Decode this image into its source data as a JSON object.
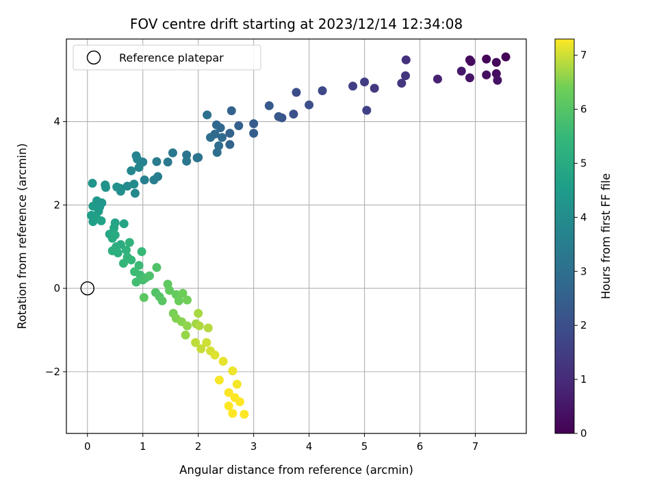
{
  "chart_data": {
    "type": "scatter",
    "title": "FOV centre drift starting at 2023/12/14 12:34:08",
    "xlabel": "Angular distance from reference (arcmin)",
    "ylabel": "Rotation from reference (arcmin)",
    "xlim": [
      -0.38,
      7.92
    ],
    "ylim": [
      -3.48,
      5.98
    ],
    "xticks": [
      0,
      1,
      2,
      3,
      4,
      5,
      6,
      7
    ],
    "yticks": [
      -2,
      0,
      2,
      4
    ],
    "xtick_labels": [
      "0",
      "1",
      "2",
      "3",
      "4",
      "5",
      "6",
      "7"
    ],
    "ytick_labels": [
      "−2",
      "0",
      "2",
      "4"
    ],
    "grid": true,
    "legend": {
      "entries": [
        "Reference platepar"
      ],
      "placement": "top-left"
    },
    "colormap": "viridis",
    "colorbar": {
      "label": "Hours from first FF file",
      "range": [
        0,
        7.3
      ],
      "ticks": [
        0,
        1,
        2,
        3,
        4,
        5,
        6,
        7
      ],
      "tick_labels": [
        "0",
        "1",
        "2",
        "3",
        "4",
        "5",
        "6",
        "7"
      ]
    },
    "reference_point": {
      "name": "Reference platepar",
      "x": 0,
      "y": 0
    },
    "series": [
      {
        "points": [
          [
            7.55,
            5.55,
            0.05
          ],
          [
            7.2,
            5.5,
            0.1
          ],
          [
            7.38,
            5.42,
            0.15
          ],
          [
            6.9,
            5.48,
            0.2
          ],
          [
            6.92,
            5.44,
            0.25
          ],
          [
            7.38,
            5.15,
            0.3
          ],
          [
            7.2,
            5.12,
            0.35
          ],
          [
            7.4,
            4.99,
            0.4
          ],
          [
            6.9,
            5.05,
            0.45
          ],
          [
            6.75,
            5.21,
            0.55
          ],
          [
            6.32,
            5.02,
            0.75
          ],
          [
            5.75,
            5.48,
            1.2
          ],
          [
            5.74,
            5.1,
            1.25
          ],
          [
            5.67,
            4.92,
            1.3
          ],
          [
            5.18,
            4.8,
            1.4
          ],
          [
            5.0,
            4.95,
            1.5
          ],
          [
            4.79,
            4.85,
            1.55
          ],
          [
            5.04,
            4.27,
            1.6
          ],
          [
            4.24,
            4.74,
            1.8
          ],
          [
            3.77,
            4.7,
            1.9
          ],
          [
            4.0,
            4.4,
            2.0
          ],
          [
            3.72,
            4.18,
            2.1
          ],
          [
            3.51,
            4.09,
            2.2
          ],
          [
            3.45,
            4.12,
            2.25
          ],
          [
            3.28,
            4.38,
            2.3
          ],
          [
            3.0,
            3.95,
            2.4
          ],
          [
            3.0,
            3.72,
            2.45
          ],
          [
            2.73,
            3.9,
            2.5
          ],
          [
            2.6,
            4.26,
            2.55
          ],
          [
            2.57,
            3.72,
            2.6
          ],
          [
            2.57,
            3.45,
            2.65
          ],
          [
            2.4,
            3.85,
            2.7
          ],
          [
            2.33,
            3.92,
            2.75
          ],
          [
            2.43,
            3.62,
            2.8
          ],
          [
            2.3,
            3.7,
            2.85
          ],
          [
            2.22,
            3.62,
            2.9
          ],
          [
            2.37,
            3.42,
            2.95
          ],
          [
            2.34,
            3.26,
            3.0
          ],
          [
            2.16,
            4.16,
            3.05
          ],
          [
            2.0,
            3.14,
            3.1
          ],
          [
            1.98,
            3.13,
            3.15
          ],
          [
            1.79,
            3.2,
            3.2
          ],
          [
            1.79,
            3.05,
            3.25
          ],
          [
            1.54,
            3.25,
            3.3
          ],
          [
            1.45,
            3.03,
            3.35
          ],
          [
            1.25,
            3.04,
            3.4
          ],
          [
            1.27,
            2.68,
            3.45
          ],
          [
            1.2,
            2.6,
            3.5
          ],
          [
            1.03,
            2.6,
            3.55
          ],
          [
            1.0,
            3.03,
            3.6
          ],
          [
            0.88,
            3.18,
            3.65
          ],
          [
            0.9,
            3.1,
            3.7
          ],
          [
            0.93,
            2.9,
            3.75
          ],
          [
            0.79,
            2.82,
            3.8
          ],
          [
            0.86,
            2.28,
            3.85
          ],
          [
            0.72,
            2.45,
            3.9
          ],
          [
            0.84,
            2.5,
            3.95
          ],
          [
            0.59,
            2.4,
            4.0
          ],
          [
            0.6,
            2.33,
            4.05
          ],
          [
            0.53,
            2.43,
            4.1
          ],
          [
            0.32,
            2.48,
            4.15
          ],
          [
            0.33,
            2.42,
            4.2
          ],
          [
            0.09,
            2.52,
            4.25
          ],
          [
            0.26,
            2.05,
            4.3
          ],
          [
            0.17,
            2.1,
            4.35
          ],
          [
            0.22,
            1.95,
            4.4
          ],
          [
            0.1,
            1.97,
            4.45
          ],
          [
            0.2,
            1.85,
            4.5
          ],
          [
            0.07,
            1.75,
            4.55
          ],
          [
            0.1,
            1.6,
            4.6
          ],
          [
            0.16,
            1.7,
            4.65
          ],
          [
            0.25,
            1.62,
            4.7
          ],
          [
            0.5,
            1.57,
            4.75
          ],
          [
            0.66,
            1.55,
            4.8
          ],
          [
            0.48,
            1.45,
            4.85
          ],
          [
            0.4,
            1.3,
            4.9
          ],
          [
            0.45,
            1.2,
            4.95
          ],
          [
            0.5,
            1.28,
            5.0
          ],
          [
            0.6,
            1.05,
            5.05
          ],
          [
            0.52,
            1.0,
            5.1
          ],
          [
            0.45,
            0.9,
            5.15
          ],
          [
            0.55,
            0.85,
            5.2
          ],
          [
            0.7,
            0.92,
            5.25
          ],
          [
            0.76,
            1.1,
            5.3
          ],
          [
            0.72,
            0.75,
            5.35
          ],
          [
            0.65,
            0.6,
            5.4
          ],
          [
            0.79,
            0.68,
            5.45
          ],
          [
            0.98,
            0.88,
            5.5
          ],
          [
            0.93,
            0.55,
            5.55
          ],
          [
            0.85,
            0.4,
            5.6
          ],
          [
            0.95,
            0.32,
            5.65
          ],
          [
            0.88,
            0.15,
            5.7
          ],
          [
            1.0,
            0.2,
            5.75
          ],
          [
            1.05,
            0.25,
            5.8
          ],
          [
            1.12,
            0.3,
            5.85
          ],
          [
            1.25,
            0.5,
            5.9
          ],
          [
            1.23,
            -0.1,
            5.95
          ],
          [
            1.3,
            -0.2,
            6.0
          ],
          [
            1.35,
            -0.3,
            6.05
          ],
          [
            1.02,
            -0.22,
            6.1
          ],
          [
            1.45,
            0.1,
            6.15
          ],
          [
            1.48,
            -0.05,
            6.2
          ],
          [
            1.6,
            -0.15,
            6.25
          ],
          [
            1.65,
            -0.3,
            6.3
          ],
          [
            1.72,
            -0.12,
            6.35
          ],
          [
            1.8,
            -0.28,
            6.4
          ],
          [
            1.55,
            -0.6,
            6.45
          ],
          [
            1.6,
            -0.72,
            6.5
          ],
          [
            1.7,
            -0.8,
            6.55
          ],
          [
            1.8,
            -0.9,
            6.6
          ],
          [
            1.77,
            -1.12,
            6.65
          ],
          [
            1.96,
            -0.85,
            6.7
          ],
          [
            2.0,
            -0.6,
            6.75
          ],
          [
            2.02,
            -0.9,
            6.8
          ],
          [
            2.18,
            -0.95,
            6.85
          ],
          [
            1.95,
            -1.3,
            6.9
          ],
          [
            2.05,
            -1.45,
            6.95
          ],
          [
            2.15,
            -1.3,
            7.0
          ],
          [
            2.22,
            -1.5,
            7.05
          ],
          [
            2.3,
            -1.6,
            7.1
          ],
          [
            2.45,
            -1.75,
            7.15
          ],
          [
            2.62,
            -1.98,
            7.2
          ],
          [
            2.7,
            -2.3,
            7.25
          ],
          [
            2.55,
            -2.5,
            7.28
          ],
          [
            2.66,
            -2.62,
            7.3
          ],
          [
            2.75,
            -2.72,
            7.3
          ],
          [
            2.55,
            -2.82,
            7.3
          ],
          [
            2.62,
            -3.0,
            7.3
          ],
          [
            2.83,
            -3.02,
            7.3
          ],
          [
            2.38,
            -2.2,
            7.25
          ]
        ]
      }
    ]
  }
}
